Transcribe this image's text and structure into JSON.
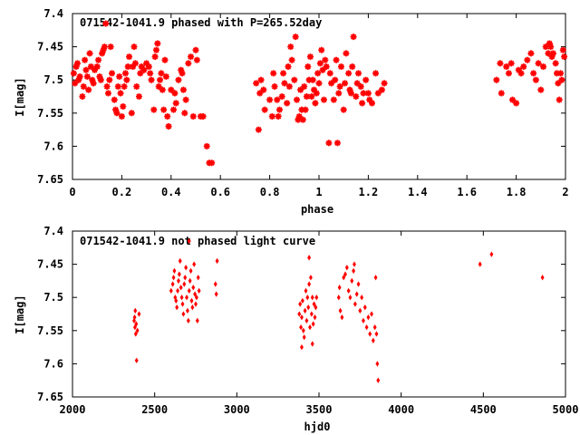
{
  "marker_color": "#ff0000",
  "chart_data": [
    {
      "type": "scatter",
      "title": "071542-1041.9 phased with P=265.52day",
      "xlabel": "phase",
      "ylabel": "I[mag]",
      "xlim": [
        0,
        2
      ],
      "ylim": [
        7.4,
        7.65
      ],
      "y_inverted": true,
      "grid": false,
      "xticks": [
        "0",
        "0.2",
        "0.4",
        "0.6",
        "0.8",
        "1",
        "1.2",
        "1.4",
        "1.6",
        "1.8",
        "2"
      ],
      "yticks": [
        "7.4",
        "7.45",
        "7.5",
        "7.55",
        "7.6",
        "7.65"
      ],
      "marker": "star",
      "points": [
        [
          0.005,
          7.49
        ],
        [
          0.01,
          7.505
        ],
        [
          0.015,
          7.48
        ],
        [
          0.02,
          7.475
        ],
        [
          0.025,
          7.5
        ],
        [
          0.03,
          7.495
        ],
        [
          0.04,
          7.525
        ],
        [
          0.045,
          7.51
        ],
        [
          0.05,
          7.47
        ],
        [
          0.055,
          7.485
        ],
        [
          0.06,
          7.495
        ],
        [
          0.065,
          7.515
        ],
        [
          0.07,
          7.46
        ],
        [
          0.075,
          7.48
        ],
        [
          0.08,
          7.5
        ],
        [
          0.085,
          7.505
        ],
        [
          0.09,
          7.485
        ],
        [
          0.1,
          7.48
        ],
        [
          0.105,
          7.47
        ],
        [
          0.11,
          7.495
        ],
        [
          0.115,
          7.5
        ],
        [
          0.12,
          7.46
        ],
        [
          0.125,
          7.455
        ],
        [
          0.13,
          7.45
        ],
        [
          0.135,
          7.415
        ],
        [
          0.14,
          7.51
        ],
        [
          0.145,
          7.52
        ],
        [
          0.15,
          7.5
        ],
        [
          0.155,
          7.45
        ],
        [
          0.16,
          7.49
        ],
        [
          0.17,
          7.53
        ],
        [
          0.175,
          7.545
        ],
        [
          0.18,
          7.55
        ],
        [
          0.185,
          7.51
        ],
        [
          0.19,
          7.495
        ],
        [
          0.195,
          7.52
        ],
        [
          0.2,
          7.555
        ],
        [
          0.205,
          7.54
        ],
        [
          0.21,
          7.51
        ],
        [
          0.215,
          7.49
        ],
        [
          0.22,
          7.5
        ],
        [
          0.225,
          7.48
        ],
        [
          0.23,
          7.465
        ],
        [
          0.24,
          7.55
        ],
        [
          0.245,
          7.48
        ],
        [
          0.25,
          7.45
        ],
        [
          0.255,
          7.475
        ],
        [
          0.26,
          7.51
        ],
        [
          0.27,
          7.525
        ],
        [
          0.275,
          7.49
        ],
        [
          0.28,
          7.48
        ],
        [
          0.29,
          7.485
        ],
        [
          0.3,
          7.475
        ],
        [
          0.31,
          7.48
        ],
        [
          0.315,
          7.49
        ],
        [
          0.32,
          7.5
        ],
        [
          0.33,
          7.545
        ],
        [
          0.335,
          7.465
        ],
        [
          0.34,
          7.455
        ],
        [
          0.345,
          7.445
        ],
        [
          0.35,
          7.51
        ],
        [
          0.355,
          7.5
        ],
        [
          0.36,
          7.49
        ],
        [
          0.365,
          7.515
        ],
        [
          0.37,
          7.545
        ],
        [
          0.375,
          7.47
        ],
        [
          0.38,
          7.495
        ],
        [
          0.385,
          7.555
        ],
        [
          0.39,
          7.57
        ],
        [
          0.4,
          7.515
        ],
        [
          0.41,
          7.545
        ],
        [
          0.415,
          7.52
        ],
        [
          0.42,
          7.535
        ],
        [
          0.43,
          7.5
        ],
        [
          0.44,
          7.485
        ],
        [
          0.445,
          7.49
        ],
        [
          0.45,
          7.515
        ],
        [
          0.455,
          7.55
        ],
        [
          0.46,
          7.53
        ],
        [
          0.47,
          7.475
        ],
        [
          0.48,
          7.465
        ],
        [
          0.49,
          7.555
        ],
        [
          0.5,
          7.455
        ],
        [
          0.505,
          7.47
        ],
        [
          0.52,
          7.555
        ],
        [
          0.53,
          7.555
        ],
        [
          0.545,
          7.6
        ],
        [
          0.555,
          7.625
        ],
        [
          0.565,
          7.625
        ],
        [
          0.745,
          7.505
        ],
        [
          0.755,
          7.575
        ],
        [
          0.76,
          7.52
        ],
        [
          0.765,
          7.5
        ],
        [
          0.775,
          7.515
        ],
        [
          0.78,
          7.545
        ],
        [
          0.8,
          7.53
        ],
        [
          0.81,
          7.555
        ],
        [
          0.815,
          7.49
        ],
        [
          0.82,
          7.51
        ],
        [
          0.83,
          7.53
        ],
        [
          0.835,
          7.555
        ],
        [
          0.84,
          7.545
        ],
        [
          0.85,
          7.525
        ],
        [
          0.855,
          7.49
        ],
        [
          0.86,
          7.505
        ],
        [
          0.87,
          7.535
        ],
        [
          0.875,
          7.48
        ],
        [
          0.88,
          7.51
        ],
        [
          0.885,
          7.45
        ],
        [
          0.89,
          7.47
        ],
        [
          0.9,
          7.5
        ],
        [
          0.905,
          7.435
        ],
        [
          0.91,
          7.53
        ],
        [
          0.915,
          7.56
        ],
        [
          0.92,
          7.555
        ],
        [
          0.925,
          7.515
        ],
        [
          0.93,
          7.545
        ],
        [
          0.935,
          7.56
        ],
        [
          0.94,
          7.51
        ],
        [
          0.945,
          7.545
        ],
        [
          0.95,
          7.525
        ],
        [
          0.955,
          7.48
        ],
        [
          0.96,
          7.5
        ],
        [
          0.965,
          7.465
        ],
        [
          0.97,
          7.525
        ],
        [
          0.975,
          7.5
        ],
        [
          0.98,
          7.515
        ],
        [
          0.985,
          7.535
        ],
        [
          0.99,
          7.52
        ],
        [
          0.995,
          7.49
        ],
        [
          1.0,
          7.505
        ],
        [
          1.005,
          7.475
        ],
        [
          1.01,
          7.455
        ],
        [
          1.015,
          7.485
        ],
        [
          1.02,
          7.53
        ],
        [
          1.025,
          7.47
        ],
        [
          1.03,
          7.48
        ],
        [
          1.04,
          7.595
        ],
        [
          1.045,
          7.49
        ],
        [
          1.05,
          7.505
        ],
        [
          1.06,
          7.53
        ],
        [
          1.065,
          7.5
        ],
        [
          1.07,
          7.47
        ],
        [
          1.075,
          7.595
        ],
        [
          1.08,
          7.52
        ],
        [
          1.085,
          7.51
        ],
        [
          1.09,
          7.48
        ],
        [
          1.1,
          7.545
        ],
        [
          1.105,
          7.505
        ],
        [
          1.11,
          7.46
        ],
        [
          1.12,
          7.49
        ],
        [
          1.125,
          7.515
        ],
        [
          1.13,
          7.52
        ],
        [
          1.135,
          7.48
        ],
        [
          1.14,
          7.435
        ],
        [
          1.15,
          7.525
        ],
        [
          1.155,
          7.505
        ],
        [
          1.16,
          7.49
        ],
        [
          1.17,
          7.51
        ],
        [
          1.175,
          7.535
        ],
        [
          1.18,
          7.52
        ],
        [
          1.19,
          7.5
        ],
        [
          1.2,
          7.52
        ],
        [
          1.205,
          7.53
        ],
        [
          1.215,
          7.535
        ],
        [
          1.23,
          7.49
        ],
        [
          1.24,
          7.52
        ],
        [
          1.255,
          7.515
        ],
        [
          1.265,
          7.505
        ],
        [
          1.72,
          7.5
        ],
        [
          1.735,
          7.475
        ],
        [
          1.74,
          7.52
        ],
        [
          1.76,
          7.48
        ],
        [
          1.77,
          7.49
        ],
        [
          1.78,
          7.475
        ],
        [
          1.785,
          7.53
        ],
        [
          1.8,
          7.535
        ],
        [
          1.81,
          7.485
        ],
        [
          1.82,
          7.49
        ],
        [
          1.83,
          7.48
        ],
        [
          1.845,
          7.47
        ],
        [
          1.86,
          7.46
        ],
        [
          1.87,
          7.49
        ],
        [
          1.88,
          7.5
        ],
        [
          1.89,
          7.475
        ],
        [
          1.9,
          7.515
        ],
        [
          1.91,
          7.48
        ],
        [
          1.92,
          7.45
        ],
        [
          1.93,
          7.46
        ],
        [
          1.935,
          7.445
        ],
        [
          1.94,
          7.45
        ],
        [
          1.945,
          7.465
        ],
        [
          1.95,
          7.46
        ],
        [
          1.96,
          7.475
        ],
        [
          1.965,
          7.49
        ],
        [
          1.97,
          7.505
        ],
        [
          1.975,
          7.53
        ],
        [
          1.98,
          7.49
        ],
        [
          1.985,
          7.5
        ],
        [
          1.99,
          7.455
        ],
        [
          1.995,
          7.465
        ]
      ]
    },
    {
      "type": "scatter",
      "title": "071542-1041.9 not phased light curve",
      "xlabel": "hjd0",
      "ylabel": "I[mag]",
      "xlim": [
        2000,
        5000
      ],
      "ylim": [
        7.4,
        7.65
      ],
      "y_inverted": true,
      "grid": false,
      "xticks": [
        "2000",
        "2500",
        "3000",
        "3500",
        "4000",
        "4500",
        "5000"
      ],
      "yticks": [
        "7.4",
        "7.45",
        "7.5",
        "7.55",
        "7.6",
        "7.65"
      ],
      "marker": "diamond",
      "points": [
        [
          2375,
          7.535
        ],
        [
          2378,
          7.53
        ],
        [
          2380,
          7.545
        ],
        [
          2382,
          7.52
        ],
        [
          2385,
          7.555
        ],
        [
          2388,
          7.54
        ],
        [
          2390,
          7.595
        ],
        [
          2395,
          7.55
        ],
        [
          2405,
          7.525
        ],
        [
          2600,
          7.49
        ],
        [
          2610,
          7.48
        ],
        [
          2615,
          7.47
        ],
        [
          2620,
          7.46
        ],
        [
          2625,
          7.5
        ],
        [
          2630,
          7.505
        ],
        [
          2635,
          7.515
        ],
        [
          2640,
          7.49
        ],
        [
          2645,
          7.475
        ],
        [
          2650,
          7.465
        ],
        [
          2655,
          7.445
        ],
        [
          2660,
          7.485
        ],
        [
          2665,
          7.5
        ],
        [
          2670,
          7.51
        ],
        [
          2675,
          7.525
        ],
        [
          2680,
          7.48
        ],
        [
          2685,
          7.47
        ],
        [
          2690,
          7.455
        ],
        [
          2695,
          7.5
        ],
        [
          2700,
          7.52
        ],
        [
          2705,
          7.535
        ],
        [
          2710,
          7.49
        ],
        [
          2715,
          7.475
        ],
        [
          2720,
          7.46
        ],
        [
          2725,
          7.505
        ],
        [
          2730,
          7.515
        ],
        [
          2735,
          7.485
        ],
        [
          2740,
          7.45
        ],
        [
          2745,
          7.495
        ],
        [
          2750,
          7.51
        ],
        [
          2755,
          7.5
        ],
        [
          2760,
          7.535
        ],
        [
          2765,
          7.47
        ],
        [
          2770,
          7.49
        ],
        [
          2710,
          7.415
        ],
        [
          2870,
          7.48
        ],
        [
          2875,
          7.495
        ],
        [
          2880,
          7.445
        ],
        [
          3380,
          7.525
        ],
        [
          3385,
          7.51
        ],
        [
          3390,
          7.545
        ],
        [
          3395,
          7.53
        ],
        [
          3400,
          7.505
        ],
        [
          3405,
          7.55
        ],
        [
          3410,
          7.56
        ],
        [
          3415,
          7.52
        ],
        [
          3420,
          7.49
        ],
        [
          3425,
          7.535
        ],
        [
          3430,
          7.5
        ],
        [
          3435,
          7.515
        ],
        [
          3440,
          7.48
        ],
        [
          3445,
          7.545
        ],
        [
          3450,
          7.47
        ],
        [
          3455,
          7.525
        ],
        [
          3460,
          7.5
        ],
        [
          3465,
          7.54
        ],
        [
          3470,
          7.51
        ],
        [
          3475,
          7.53
        ],
        [
          3480,
          7.515
        ],
        [
          3485,
          7.5
        ],
        [
          3440,
          7.44
        ],
        [
          3460,
          7.57
        ],
        [
          3395,
          7.575
        ],
        [
          3620,
          7.5
        ],
        [
          3625,
          7.485
        ],
        [
          3630,
          7.52
        ],
        [
          3640,
          7.53
        ],
        [
          3650,
          7.47
        ],
        [
          3660,
          7.465
        ],
        [
          3670,
          7.455
        ],
        [
          3680,
          7.49
        ],
        [
          3690,
          7.5
        ],
        [
          3700,
          7.475
        ],
        [
          3710,
          7.46
        ],
        [
          3715,
          7.45
        ],
        [
          3720,
          7.51
        ],
        [
          3730,
          7.495
        ],
        [
          3740,
          7.48
        ],
        [
          3750,
          7.52
        ],
        [
          3760,
          7.5
        ],
        [
          3770,
          7.535
        ],
        [
          3780,
          7.515
        ],
        [
          3790,
          7.545
        ],
        [
          3800,
          7.53
        ],
        [
          3810,
          7.555
        ],
        [
          3820,
          7.525
        ],
        [
          3830,
          7.565
        ],
        [
          3840,
          7.545
        ],
        [
          3850,
          7.555
        ],
        [
          3855,
          7.6
        ],
        [
          3860,
          7.625
        ],
        [
          3845,
          7.47
        ],
        [
          4480,
          7.45
        ],
        [
          4550,
          7.435
        ],
        [
          4860,
          7.47
        ]
      ]
    }
  ]
}
